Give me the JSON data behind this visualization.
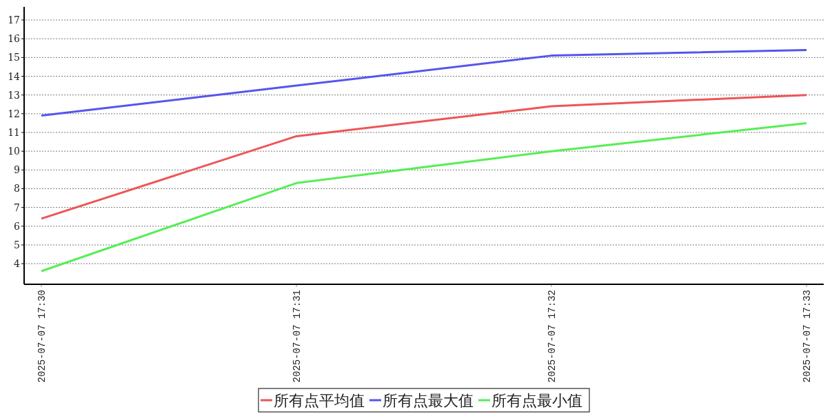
{
  "chart_data": {
    "type": "line",
    "categories": [
      "2025-07-07 17:30",
      "2025-07-07 17:31",
      "2025-07-07 17:32",
      "2025-07-07 17:33"
    ],
    "series": [
      {
        "name": "所有点平均值",
        "color": "#ee5555",
        "values": [
          6.4,
          10.8,
          12.4,
          13.0
        ]
      },
      {
        "name": "所有点最大值",
        "color": "#5555ee",
        "values": [
          11.9,
          13.5,
          15.1,
          15.4
        ]
      },
      {
        "name": "所有点最小值",
        "color": "#55ee55",
        "values": [
          3.6,
          8.3,
          10.0,
          11.5
        ]
      }
    ],
    "ylim": [
      2.9,
      17.7
    ],
    "yticks": [
      4,
      5,
      6,
      7,
      8,
      9,
      10,
      11,
      12,
      13,
      14,
      15,
      16,
      17
    ],
    "grid": "y",
    "legend": "bottom"
  }
}
